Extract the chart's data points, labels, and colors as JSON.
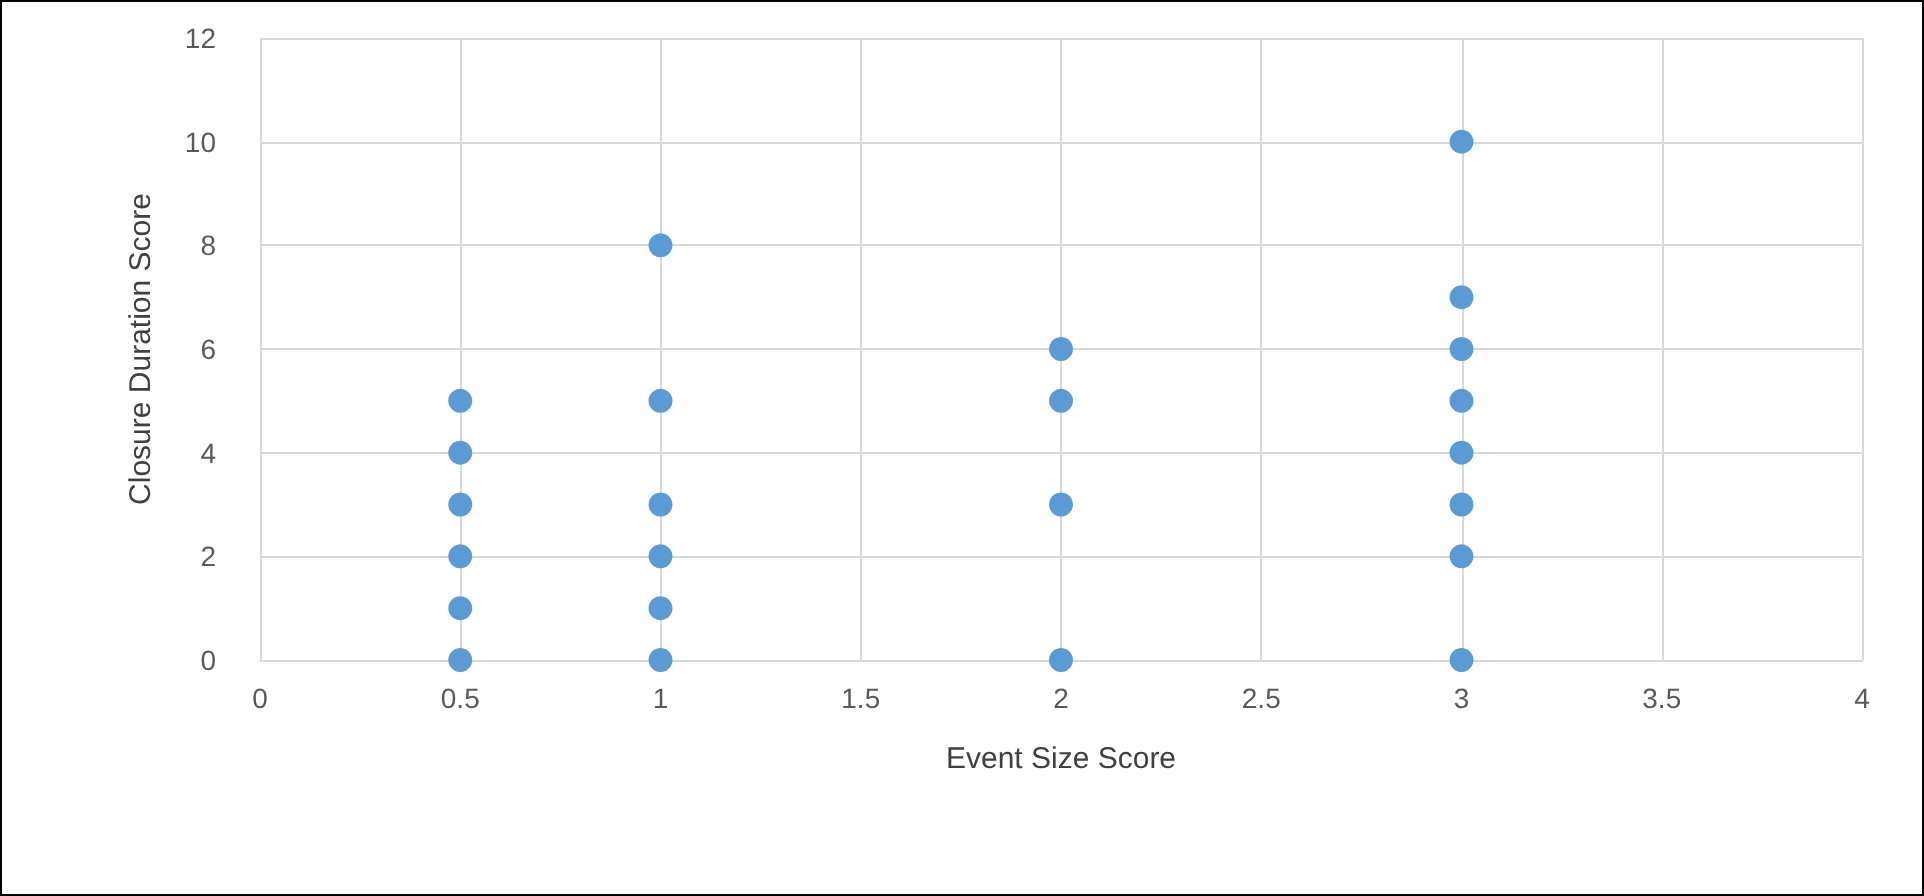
{
  "chart_data": {
    "type": "scatter",
    "xlabel": "Event Size Score",
    "ylabel": "Closure Duration Score",
    "x": [
      0.5,
      0.5,
      0.5,
      0.5,
      0.5,
      0.5,
      1,
      1,
      1,
      1,
      1,
      1,
      2,
      2,
      2,
      2,
      3,
      3,
      3,
      3,
      3,
      3,
      3,
      3
    ],
    "values": [
      0,
      1,
      2,
      3,
      4,
      5,
      0,
      1,
      2,
      3,
      5,
      8,
      0,
      3,
      5,
      6,
      0,
      2,
      3,
      4,
      5,
      6,
      7,
      10
    ],
    "color": "#5b9bd5",
    "marker": "circle",
    "xlim": [
      0,
      4
    ],
    "xticks": [
      0,
      0.5,
      1,
      1.5,
      2,
      2.5,
      3,
      3.5,
      4
    ],
    "ylim": [
      0,
      12
    ],
    "yticks": [
      0,
      2,
      4,
      6,
      8,
      10,
      12
    ],
    "grid": true
  }
}
